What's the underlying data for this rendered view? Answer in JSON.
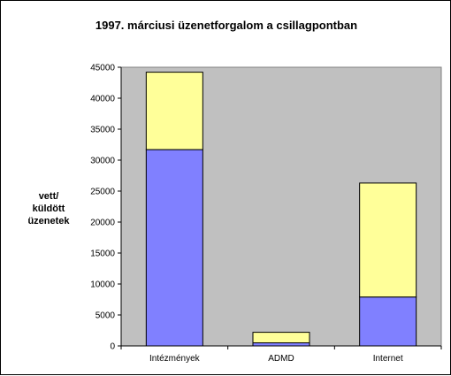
{
  "chart_data": {
    "type": "bar",
    "stacked": true,
    "title": "1997. márciusi üzenetforgalom a csillagpontban",
    "xlabel": "",
    "ylabel": [
      "vett/",
      "küldött",
      "üzenetek"
    ],
    "categories": [
      "Intézmények",
      "ADMD",
      "Internet"
    ],
    "series": [
      {
        "values": [
          31700,
          500,
          7900
        ],
        "color": "#8080ff"
      },
      {
        "values": [
          12500,
          1700,
          18400
        ],
        "color": "#ffff99"
      }
    ],
    "ylim": [
      0,
      45000
    ],
    "yticks": [
      0,
      5000,
      10000,
      15000,
      20000,
      25000,
      30000,
      35000,
      40000,
      45000
    ],
    "grid": false,
    "legend": "none",
    "plot_background": "#c0c0c0"
  }
}
